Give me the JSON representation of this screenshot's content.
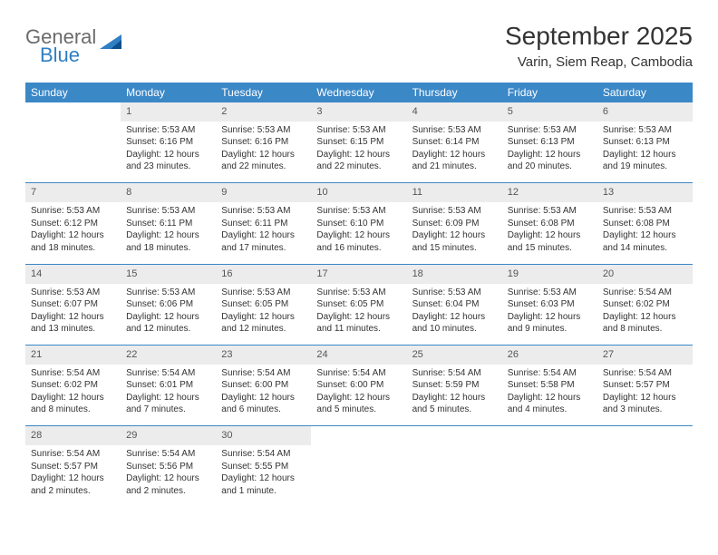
{
  "logo": {
    "word1": "General",
    "word2": "Blue",
    "tri_color1": "#2f7fc3",
    "tri_color2": "#0d4f8b"
  },
  "title": "September 2025",
  "location": "Varin, Siem Reap, Cambodia",
  "header_bg": "#3b88c7",
  "header_fg": "#ffffff",
  "daynum_bg": "#ececec",
  "daynum_fg": "#555555",
  "border_color": "#3b88c7",
  "text_color": "#333333",
  "day_names": [
    "Sunday",
    "Monday",
    "Tuesday",
    "Wednesday",
    "Thursday",
    "Friday",
    "Saturday"
  ],
  "weeks": [
    {
      "nums": [
        "",
        "1",
        "2",
        "3",
        "4",
        "5",
        "6"
      ],
      "cells": [
        null,
        {
          "sunrise": "Sunrise: 5:53 AM",
          "sunset": "Sunset: 6:16 PM",
          "day1": "Daylight: 12 hours",
          "day2": "and 23 minutes."
        },
        {
          "sunrise": "Sunrise: 5:53 AM",
          "sunset": "Sunset: 6:16 PM",
          "day1": "Daylight: 12 hours",
          "day2": "and 22 minutes."
        },
        {
          "sunrise": "Sunrise: 5:53 AM",
          "sunset": "Sunset: 6:15 PM",
          "day1": "Daylight: 12 hours",
          "day2": "and 22 minutes."
        },
        {
          "sunrise": "Sunrise: 5:53 AM",
          "sunset": "Sunset: 6:14 PM",
          "day1": "Daylight: 12 hours",
          "day2": "and 21 minutes."
        },
        {
          "sunrise": "Sunrise: 5:53 AM",
          "sunset": "Sunset: 6:13 PM",
          "day1": "Daylight: 12 hours",
          "day2": "and 20 minutes."
        },
        {
          "sunrise": "Sunrise: 5:53 AM",
          "sunset": "Sunset: 6:13 PM",
          "day1": "Daylight: 12 hours",
          "day2": "and 19 minutes."
        }
      ]
    },
    {
      "nums": [
        "7",
        "8",
        "9",
        "10",
        "11",
        "12",
        "13"
      ],
      "cells": [
        {
          "sunrise": "Sunrise: 5:53 AM",
          "sunset": "Sunset: 6:12 PM",
          "day1": "Daylight: 12 hours",
          "day2": "and 18 minutes."
        },
        {
          "sunrise": "Sunrise: 5:53 AM",
          "sunset": "Sunset: 6:11 PM",
          "day1": "Daylight: 12 hours",
          "day2": "and 18 minutes."
        },
        {
          "sunrise": "Sunrise: 5:53 AM",
          "sunset": "Sunset: 6:11 PM",
          "day1": "Daylight: 12 hours",
          "day2": "and 17 minutes."
        },
        {
          "sunrise": "Sunrise: 5:53 AM",
          "sunset": "Sunset: 6:10 PM",
          "day1": "Daylight: 12 hours",
          "day2": "and 16 minutes."
        },
        {
          "sunrise": "Sunrise: 5:53 AM",
          "sunset": "Sunset: 6:09 PM",
          "day1": "Daylight: 12 hours",
          "day2": "and 15 minutes."
        },
        {
          "sunrise": "Sunrise: 5:53 AM",
          "sunset": "Sunset: 6:08 PM",
          "day1": "Daylight: 12 hours",
          "day2": "and 15 minutes."
        },
        {
          "sunrise": "Sunrise: 5:53 AM",
          "sunset": "Sunset: 6:08 PM",
          "day1": "Daylight: 12 hours",
          "day2": "and 14 minutes."
        }
      ]
    },
    {
      "nums": [
        "14",
        "15",
        "16",
        "17",
        "18",
        "19",
        "20"
      ],
      "cells": [
        {
          "sunrise": "Sunrise: 5:53 AM",
          "sunset": "Sunset: 6:07 PM",
          "day1": "Daylight: 12 hours",
          "day2": "and 13 minutes."
        },
        {
          "sunrise": "Sunrise: 5:53 AM",
          "sunset": "Sunset: 6:06 PM",
          "day1": "Daylight: 12 hours",
          "day2": "and 12 minutes."
        },
        {
          "sunrise": "Sunrise: 5:53 AM",
          "sunset": "Sunset: 6:05 PM",
          "day1": "Daylight: 12 hours",
          "day2": "and 12 minutes."
        },
        {
          "sunrise": "Sunrise: 5:53 AM",
          "sunset": "Sunset: 6:05 PM",
          "day1": "Daylight: 12 hours",
          "day2": "and 11 minutes."
        },
        {
          "sunrise": "Sunrise: 5:53 AM",
          "sunset": "Sunset: 6:04 PM",
          "day1": "Daylight: 12 hours",
          "day2": "and 10 minutes."
        },
        {
          "sunrise": "Sunrise: 5:53 AM",
          "sunset": "Sunset: 6:03 PM",
          "day1": "Daylight: 12 hours",
          "day2": "and 9 minutes."
        },
        {
          "sunrise": "Sunrise: 5:54 AM",
          "sunset": "Sunset: 6:02 PM",
          "day1": "Daylight: 12 hours",
          "day2": "and 8 minutes."
        }
      ]
    },
    {
      "nums": [
        "21",
        "22",
        "23",
        "24",
        "25",
        "26",
        "27"
      ],
      "cells": [
        {
          "sunrise": "Sunrise: 5:54 AM",
          "sunset": "Sunset: 6:02 PM",
          "day1": "Daylight: 12 hours",
          "day2": "and 8 minutes."
        },
        {
          "sunrise": "Sunrise: 5:54 AM",
          "sunset": "Sunset: 6:01 PM",
          "day1": "Daylight: 12 hours",
          "day2": "and 7 minutes."
        },
        {
          "sunrise": "Sunrise: 5:54 AM",
          "sunset": "Sunset: 6:00 PM",
          "day1": "Daylight: 12 hours",
          "day2": "and 6 minutes."
        },
        {
          "sunrise": "Sunrise: 5:54 AM",
          "sunset": "Sunset: 6:00 PM",
          "day1": "Daylight: 12 hours",
          "day2": "and 5 minutes."
        },
        {
          "sunrise": "Sunrise: 5:54 AM",
          "sunset": "Sunset: 5:59 PM",
          "day1": "Daylight: 12 hours",
          "day2": "and 5 minutes."
        },
        {
          "sunrise": "Sunrise: 5:54 AM",
          "sunset": "Sunset: 5:58 PM",
          "day1": "Daylight: 12 hours",
          "day2": "and 4 minutes."
        },
        {
          "sunrise": "Sunrise: 5:54 AM",
          "sunset": "Sunset: 5:57 PM",
          "day1": "Daylight: 12 hours",
          "day2": "and 3 minutes."
        }
      ]
    },
    {
      "nums": [
        "28",
        "29",
        "30",
        "",
        "",
        "",
        ""
      ],
      "cells": [
        {
          "sunrise": "Sunrise: 5:54 AM",
          "sunset": "Sunset: 5:57 PM",
          "day1": "Daylight: 12 hours",
          "day2": "and 2 minutes."
        },
        {
          "sunrise": "Sunrise: 5:54 AM",
          "sunset": "Sunset: 5:56 PM",
          "day1": "Daylight: 12 hours",
          "day2": "and 2 minutes."
        },
        {
          "sunrise": "Sunrise: 5:54 AM",
          "sunset": "Sunset: 5:55 PM",
          "day1": "Daylight: 12 hours",
          "day2": "and 1 minute."
        },
        null,
        null,
        null,
        null
      ]
    }
  ]
}
